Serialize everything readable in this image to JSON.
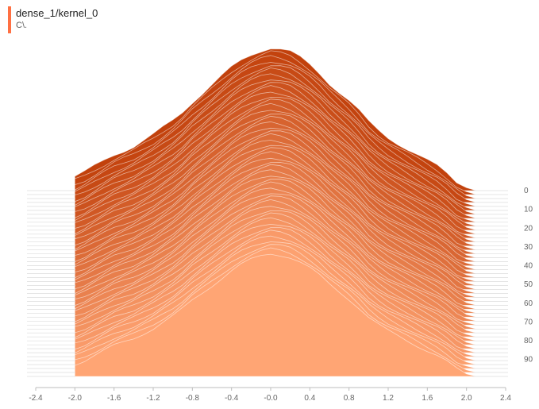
{
  "header": {
    "title": "dense_1/kernel_0",
    "subtitle": "C\\.",
    "accent_color": "#ff7043"
  },
  "chart_data": {
    "type": "area",
    "subtype": "histogram-offset",
    "title": "dense_1/kernel_0",
    "x_ticks": [
      "-2.4",
      "-2.0",
      "-1.6",
      "-1.2",
      "-0.8",
      "-0.4",
      "-0.0",
      "0.4",
      "0.8",
      "1.2",
      "1.6",
      "2.0",
      "2.4"
    ],
    "x_range": [
      -2.4,
      2.4
    ],
    "step_ticks": [
      "0",
      "10",
      "20",
      "30",
      "40",
      "50",
      "60",
      "70",
      "80",
      "90"
    ],
    "step_range": [
      0,
      99
    ],
    "color_oldest": "#c2410c",
    "color_newest": "#ffa574",
    "profile": {
      "x": [
        -2.0,
        -1.9,
        -1.8,
        -1.7,
        -1.6,
        -1.5,
        -1.4,
        -1.3,
        -1.2,
        -1.1,
        -1.0,
        -0.9,
        -0.8,
        -0.7,
        -0.6,
        -0.5,
        -0.4,
        -0.3,
        -0.2,
        -0.1,
        0.0,
        0.1,
        0.2,
        0.3,
        0.4,
        0.5,
        0.6,
        0.7,
        0.8,
        0.9,
        1.0,
        1.1,
        1.2,
        1.3,
        1.4,
        1.5,
        1.6,
        1.7,
        1.8,
        1.9,
        2.0,
        2.1
      ],
      "y": [
        0.1,
        0.13,
        0.17,
        0.21,
        0.25,
        0.28,
        0.31,
        0.35,
        0.39,
        0.44,
        0.49,
        0.55,
        0.62,
        0.68,
        0.74,
        0.8,
        0.86,
        0.91,
        0.95,
        0.98,
        1.0,
        0.99,
        0.97,
        0.93,
        0.88,
        0.82,
        0.75,
        0.69,
        0.63,
        0.56,
        0.48,
        0.42,
        0.37,
        0.33,
        0.29,
        0.25,
        0.21,
        0.17,
        0.12,
        0.06,
        0.02,
        0.0
      ]
    }
  }
}
